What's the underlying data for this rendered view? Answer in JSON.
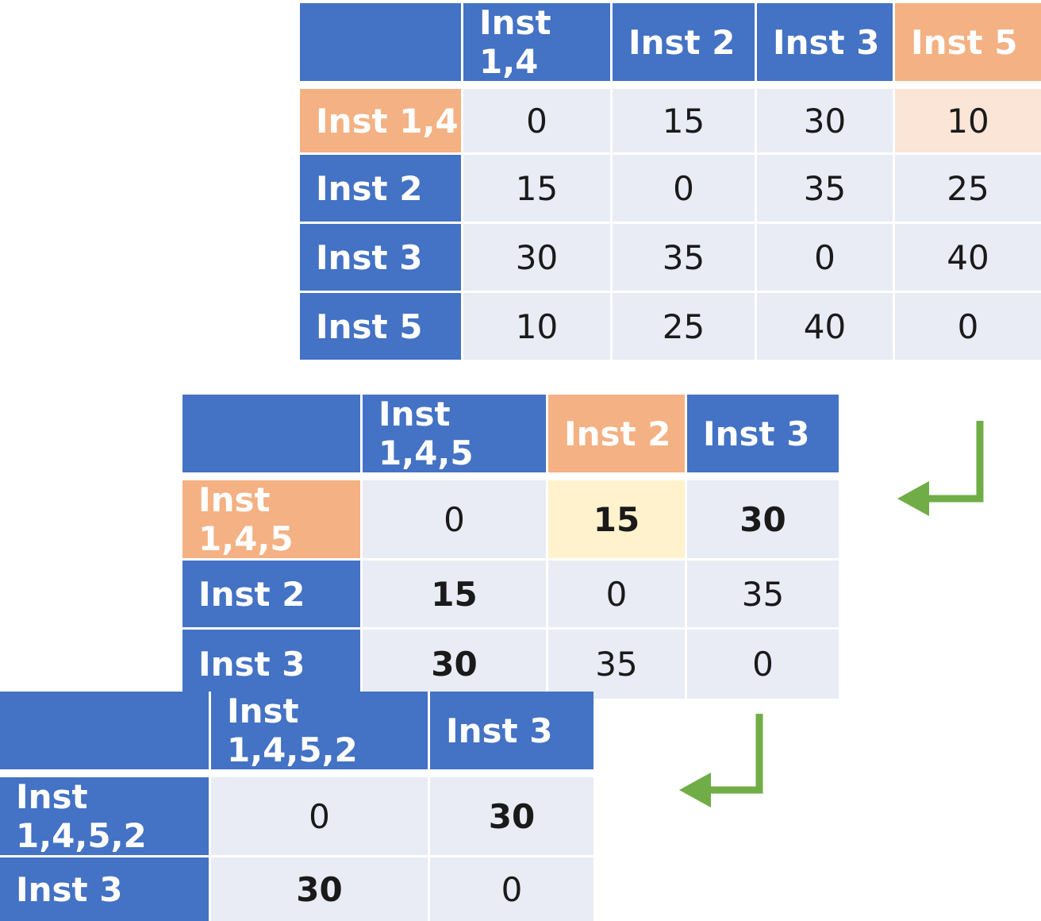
{
  "colors": {
    "header_blue": "#4472c4",
    "header_highlight": "#f4b183",
    "cell": "#e9ebf5",
    "cell_peach": "#fbe5d6",
    "cell_yellow": "#fff2cc",
    "arrow_green": "#70ad47"
  },
  "matrices": [
    {
      "columns": [
        {
          "label": "Inst 1,4",
          "highlight": false
        },
        {
          "label": "Inst 2",
          "highlight": false
        },
        {
          "label": "Inst 3",
          "highlight": false
        },
        {
          "label": "Inst 5",
          "highlight": true
        }
      ],
      "rows": [
        {
          "label": "Inst 1,4",
          "highlight": true,
          "cells": [
            {
              "v": "0"
            },
            {
              "v": "15"
            },
            {
              "v": "30"
            },
            {
              "v": "10",
              "bg": "peach"
            }
          ]
        },
        {
          "label": "Inst 2",
          "highlight": false,
          "cells": [
            {
              "v": "15"
            },
            {
              "v": "0"
            },
            {
              "v": "35"
            },
            {
              "v": "25"
            }
          ]
        },
        {
          "label": "Inst 3",
          "highlight": false,
          "cells": [
            {
              "v": "30"
            },
            {
              "v": "35"
            },
            {
              "v": "0"
            },
            {
              "v": "40"
            }
          ]
        },
        {
          "label": "Inst 5",
          "highlight": false,
          "cells": [
            {
              "v": "10"
            },
            {
              "v": "25"
            },
            {
              "v": "40"
            },
            {
              "v": "0"
            }
          ]
        }
      ]
    },
    {
      "columns": [
        {
          "label": "Inst 1,4,5",
          "highlight": false
        },
        {
          "label": "Inst 2",
          "highlight": true
        },
        {
          "label": "Inst 3",
          "highlight": false
        }
      ],
      "rows": [
        {
          "label": "Inst 1,4,5",
          "highlight": true,
          "cells": [
            {
              "v": "0"
            },
            {
              "v": "15",
              "bold": true,
              "bg": "yellow"
            },
            {
              "v": "30",
              "bold": true
            }
          ]
        },
        {
          "label": "Inst 2",
          "highlight": false,
          "cells": [
            {
              "v": "15",
              "bold": true
            },
            {
              "v": "0"
            },
            {
              "v": "35"
            }
          ]
        },
        {
          "label": "Inst 3",
          "highlight": false,
          "cells": [
            {
              "v": "30",
              "bold": true
            },
            {
              "v": "35"
            },
            {
              "v": "0"
            }
          ]
        }
      ]
    },
    {
      "columns": [
        {
          "label": "Inst 1,4,5,2",
          "highlight": false
        },
        {
          "label": "Inst 3",
          "highlight": false
        }
      ],
      "rows": [
        {
          "label": "Inst 1,4,5,2",
          "highlight": false,
          "cells": [
            {
              "v": "0"
            },
            {
              "v": "30",
              "bold": true
            }
          ]
        },
        {
          "label": "Inst 3",
          "highlight": false,
          "cells": [
            {
              "v": "30",
              "bold": true
            },
            {
              "v": "0"
            }
          ]
        }
      ]
    }
  ]
}
